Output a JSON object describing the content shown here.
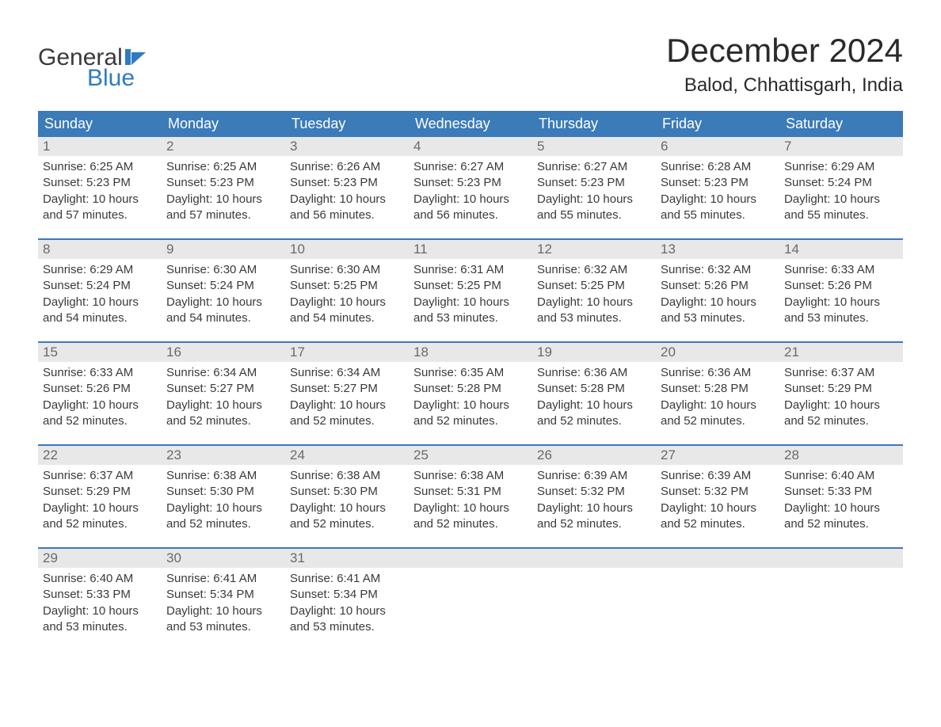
{
  "logo": {
    "top": "General",
    "bottom": "Blue",
    "top_color": "#3a3a3a",
    "bottom_color": "#2f7bbf",
    "icon_color": "#2f7bbf"
  },
  "title": "December 2024",
  "location": "Balod, Chhattisgarh, India",
  "colors": {
    "header_bg": "#3b7bb8",
    "header_text": "#ffffff",
    "daynum_bg": "#e8e8e8",
    "daynum_text": "#6a6a6a",
    "body_text": "#3a3a3a",
    "week_border": "#3b7bb8"
  },
  "daynames": [
    "Sunday",
    "Monday",
    "Tuesday",
    "Wednesday",
    "Thursday",
    "Friday",
    "Saturday"
  ],
  "weeks": [
    [
      {
        "num": "1",
        "sunrise": "Sunrise: 6:25 AM",
        "sunset": "Sunset: 5:23 PM",
        "d1": "Daylight: 10 hours",
        "d2": "and 57 minutes."
      },
      {
        "num": "2",
        "sunrise": "Sunrise: 6:25 AM",
        "sunset": "Sunset: 5:23 PM",
        "d1": "Daylight: 10 hours",
        "d2": "and 57 minutes."
      },
      {
        "num": "3",
        "sunrise": "Sunrise: 6:26 AM",
        "sunset": "Sunset: 5:23 PM",
        "d1": "Daylight: 10 hours",
        "d2": "and 56 minutes."
      },
      {
        "num": "4",
        "sunrise": "Sunrise: 6:27 AM",
        "sunset": "Sunset: 5:23 PM",
        "d1": "Daylight: 10 hours",
        "d2": "and 56 minutes."
      },
      {
        "num": "5",
        "sunrise": "Sunrise: 6:27 AM",
        "sunset": "Sunset: 5:23 PM",
        "d1": "Daylight: 10 hours",
        "d2": "and 55 minutes."
      },
      {
        "num": "6",
        "sunrise": "Sunrise: 6:28 AM",
        "sunset": "Sunset: 5:23 PM",
        "d1": "Daylight: 10 hours",
        "d2": "and 55 minutes."
      },
      {
        "num": "7",
        "sunrise": "Sunrise: 6:29 AM",
        "sunset": "Sunset: 5:24 PM",
        "d1": "Daylight: 10 hours",
        "d2": "and 55 minutes."
      }
    ],
    [
      {
        "num": "8",
        "sunrise": "Sunrise: 6:29 AM",
        "sunset": "Sunset: 5:24 PM",
        "d1": "Daylight: 10 hours",
        "d2": "and 54 minutes."
      },
      {
        "num": "9",
        "sunrise": "Sunrise: 6:30 AM",
        "sunset": "Sunset: 5:24 PM",
        "d1": "Daylight: 10 hours",
        "d2": "and 54 minutes."
      },
      {
        "num": "10",
        "sunrise": "Sunrise: 6:30 AM",
        "sunset": "Sunset: 5:25 PM",
        "d1": "Daylight: 10 hours",
        "d2": "and 54 minutes."
      },
      {
        "num": "11",
        "sunrise": "Sunrise: 6:31 AM",
        "sunset": "Sunset: 5:25 PM",
        "d1": "Daylight: 10 hours",
        "d2": "and 53 minutes."
      },
      {
        "num": "12",
        "sunrise": "Sunrise: 6:32 AM",
        "sunset": "Sunset: 5:25 PM",
        "d1": "Daylight: 10 hours",
        "d2": "and 53 minutes."
      },
      {
        "num": "13",
        "sunrise": "Sunrise: 6:32 AM",
        "sunset": "Sunset: 5:26 PM",
        "d1": "Daylight: 10 hours",
        "d2": "and 53 minutes."
      },
      {
        "num": "14",
        "sunrise": "Sunrise: 6:33 AM",
        "sunset": "Sunset: 5:26 PM",
        "d1": "Daylight: 10 hours",
        "d2": "and 53 minutes."
      }
    ],
    [
      {
        "num": "15",
        "sunrise": "Sunrise: 6:33 AM",
        "sunset": "Sunset: 5:26 PM",
        "d1": "Daylight: 10 hours",
        "d2": "and 52 minutes."
      },
      {
        "num": "16",
        "sunrise": "Sunrise: 6:34 AM",
        "sunset": "Sunset: 5:27 PM",
        "d1": "Daylight: 10 hours",
        "d2": "and 52 minutes."
      },
      {
        "num": "17",
        "sunrise": "Sunrise: 6:34 AM",
        "sunset": "Sunset: 5:27 PM",
        "d1": "Daylight: 10 hours",
        "d2": "and 52 minutes."
      },
      {
        "num": "18",
        "sunrise": "Sunrise: 6:35 AM",
        "sunset": "Sunset: 5:28 PM",
        "d1": "Daylight: 10 hours",
        "d2": "and 52 minutes."
      },
      {
        "num": "19",
        "sunrise": "Sunrise: 6:36 AM",
        "sunset": "Sunset: 5:28 PM",
        "d1": "Daylight: 10 hours",
        "d2": "and 52 minutes."
      },
      {
        "num": "20",
        "sunrise": "Sunrise: 6:36 AM",
        "sunset": "Sunset: 5:28 PM",
        "d1": "Daylight: 10 hours",
        "d2": "and 52 minutes."
      },
      {
        "num": "21",
        "sunrise": "Sunrise: 6:37 AM",
        "sunset": "Sunset: 5:29 PM",
        "d1": "Daylight: 10 hours",
        "d2": "and 52 minutes."
      }
    ],
    [
      {
        "num": "22",
        "sunrise": "Sunrise: 6:37 AM",
        "sunset": "Sunset: 5:29 PM",
        "d1": "Daylight: 10 hours",
        "d2": "and 52 minutes."
      },
      {
        "num": "23",
        "sunrise": "Sunrise: 6:38 AM",
        "sunset": "Sunset: 5:30 PM",
        "d1": "Daylight: 10 hours",
        "d2": "and 52 minutes."
      },
      {
        "num": "24",
        "sunrise": "Sunrise: 6:38 AM",
        "sunset": "Sunset: 5:30 PM",
        "d1": "Daylight: 10 hours",
        "d2": "and 52 minutes."
      },
      {
        "num": "25",
        "sunrise": "Sunrise: 6:38 AM",
        "sunset": "Sunset: 5:31 PM",
        "d1": "Daylight: 10 hours",
        "d2": "and 52 minutes."
      },
      {
        "num": "26",
        "sunrise": "Sunrise: 6:39 AM",
        "sunset": "Sunset: 5:32 PM",
        "d1": "Daylight: 10 hours",
        "d2": "and 52 minutes."
      },
      {
        "num": "27",
        "sunrise": "Sunrise: 6:39 AM",
        "sunset": "Sunset: 5:32 PM",
        "d1": "Daylight: 10 hours",
        "d2": "and 52 minutes."
      },
      {
        "num": "28",
        "sunrise": "Sunrise: 6:40 AM",
        "sunset": "Sunset: 5:33 PM",
        "d1": "Daylight: 10 hours",
        "d2": "and 52 minutes."
      }
    ],
    [
      {
        "num": "29",
        "sunrise": "Sunrise: 6:40 AM",
        "sunset": "Sunset: 5:33 PM",
        "d1": "Daylight: 10 hours",
        "d2": "and 53 minutes."
      },
      {
        "num": "30",
        "sunrise": "Sunrise: 6:41 AM",
        "sunset": "Sunset: 5:34 PM",
        "d1": "Daylight: 10 hours",
        "d2": "and 53 minutes."
      },
      {
        "num": "31",
        "sunrise": "Sunrise: 6:41 AM",
        "sunset": "Sunset: 5:34 PM",
        "d1": "Daylight: 10 hours",
        "d2": "and 53 minutes."
      },
      null,
      null,
      null,
      null
    ]
  ]
}
